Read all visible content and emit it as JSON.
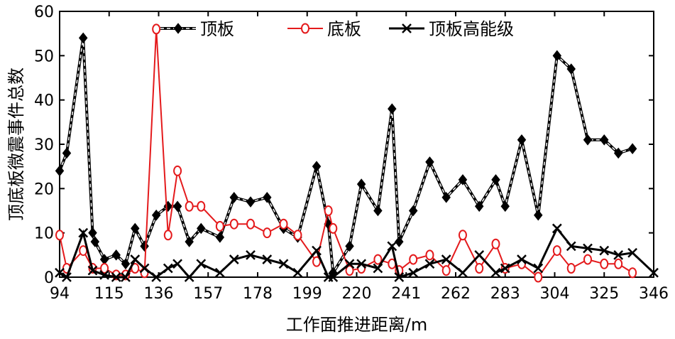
{
  "chart_data": {
    "type": "line",
    "title": "",
    "xlabel": "工作面推进距离/m",
    "ylabel": "顶底板微震事件总数",
    "xlim": [
      94,
      346
    ],
    "ylim": [
      0,
      60
    ],
    "x_ticks": [
      94,
      115,
      136,
      157,
      178,
      199,
      220,
      241,
      262,
      283,
      304,
      325,
      346
    ],
    "y_ticks": [
      0,
      10,
      20,
      30,
      40,
      50,
      60
    ],
    "legend_position": "top",
    "series": [
      {
        "name": "顶板",
        "color": "#000000",
        "marker": "diamond",
        "points": [
          [
            94,
            24
          ],
          [
            97,
            28
          ],
          [
            104,
            54
          ],
          [
            108,
            10
          ],
          [
            109,
            8
          ],
          [
            113,
            4
          ],
          [
            118,
            5
          ],
          [
            122,
            3
          ],
          [
            126,
            11
          ],
          [
            130,
            7
          ],
          [
            135,
            14
          ],
          [
            140,
            16
          ],
          [
            144,
            16
          ],
          [
            149,
            8
          ],
          [
            154,
            11
          ],
          [
            162,
            9
          ],
          [
            168,
            18
          ],
          [
            175,
            17
          ],
          [
            182,
            18
          ],
          [
            189,
            11
          ],
          [
            195,
            9
          ],
          [
            203,
            25
          ],
          [
            208,
            12
          ],
          [
            210,
            1
          ],
          [
            217,
            7
          ],
          [
            222,
            21
          ],
          [
            229,
            15
          ],
          [
            235,
            38
          ],
          [
            238,
            8
          ],
          [
            244,
            15
          ],
          [
            251,
            26
          ],
          [
            258,
            18
          ],
          [
            265,
            22
          ],
          [
            272,
            16
          ],
          [
            279,
            22
          ],
          [
            283,
            16
          ],
          [
            290,
            31
          ],
          [
            297,
            14
          ],
          [
            305,
            50
          ],
          [
            311,
            47
          ],
          [
            318,
            31
          ],
          [
            325,
            31
          ],
          [
            331,
            28
          ],
          [
            337,
            29
          ]
        ]
      },
      {
        "name": "底板",
        "color": "#e41a1c",
        "marker": "circle",
        "points": [
          [
            94,
            9.5
          ],
          [
            97,
            2
          ],
          [
            104,
            6
          ],
          [
            108,
            2
          ],
          [
            113,
            2
          ],
          [
            118,
            0.5
          ],
          [
            122,
            0.5
          ],
          [
            126,
            2
          ],
          [
            130,
            1
          ],
          [
            135,
            56
          ],
          [
            140,
            9.5
          ],
          [
            144,
            24
          ],
          [
            149,
            16
          ],
          [
            154,
            16
          ],
          [
            162,
            11.5
          ],
          [
            168,
            12
          ],
          [
            175,
            12
          ],
          [
            182,
            10
          ],
          [
            189,
            12
          ],
          [
            195,
            9.5
          ],
          [
            203,
            3.5
          ],
          [
            208,
            15
          ],
          [
            210,
            11
          ],
          [
            217,
            1.5
          ],
          [
            222,
            2
          ],
          [
            229,
            4
          ],
          [
            235,
            3
          ],
          [
            238,
            1.5
          ],
          [
            244,
            4
          ],
          [
            251,
            5
          ],
          [
            258,
            1.5
          ],
          [
            265,
            9.5
          ],
          [
            272,
            2
          ],
          [
            279,
            7.5
          ],
          [
            283,
            2
          ],
          [
            290,
            3
          ],
          [
            297,
            0
          ],
          [
            305,
            6
          ],
          [
            311,
            2
          ],
          [
            318,
            4
          ],
          [
            325,
            3
          ],
          [
            331,
            3
          ],
          [
            337,
            1
          ]
        ]
      },
      {
        "name": "顶板高能级",
        "color": "#000000",
        "marker": "x",
        "points": [
          [
            94,
            1
          ],
          [
            97,
            0
          ],
          [
            104,
            10
          ],
          [
            108,
            1.5
          ],
          [
            113,
            0.5
          ],
          [
            118,
            0
          ],
          [
            122,
            0
          ],
          [
            126,
            4
          ],
          [
            130,
            2
          ],
          [
            135,
            0
          ],
          [
            140,
            2
          ],
          [
            144,
            3
          ],
          [
            149,
            0
          ],
          [
            154,
            3
          ],
          [
            162,
            1
          ],
          [
            168,
            4
          ],
          [
            175,
            5
          ],
          [
            182,
            4
          ],
          [
            189,
            3
          ],
          [
            195,
            1
          ],
          [
            203,
            6
          ],
          [
            208,
            0
          ],
          [
            210,
            0
          ],
          [
            217,
            3
          ],
          [
            222,
            3
          ],
          [
            229,
            2
          ],
          [
            235,
            7
          ],
          [
            238,
            0
          ],
          [
            244,
            1
          ],
          [
            251,
            3
          ],
          [
            258,
            4
          ],
          [
            265,
            1
          ],
          [
            272,
            5
          ],
          [
            279,
            1
          ],
          [
            283,
            2
          ],
          [
            290,
            4
          ],
          [
            297,
            2
          ],
          [
            305,
            11
          ],
          [
            311,
            7
          ],
          [
            318,
            6.5
          ],
          [
            325,
            6
          ],
          [
            331,
            5
          ],
          [
            337,
            5.5
          ],
          [
            346,
            1
          ]
        ]
      }
    ]
  }
}
